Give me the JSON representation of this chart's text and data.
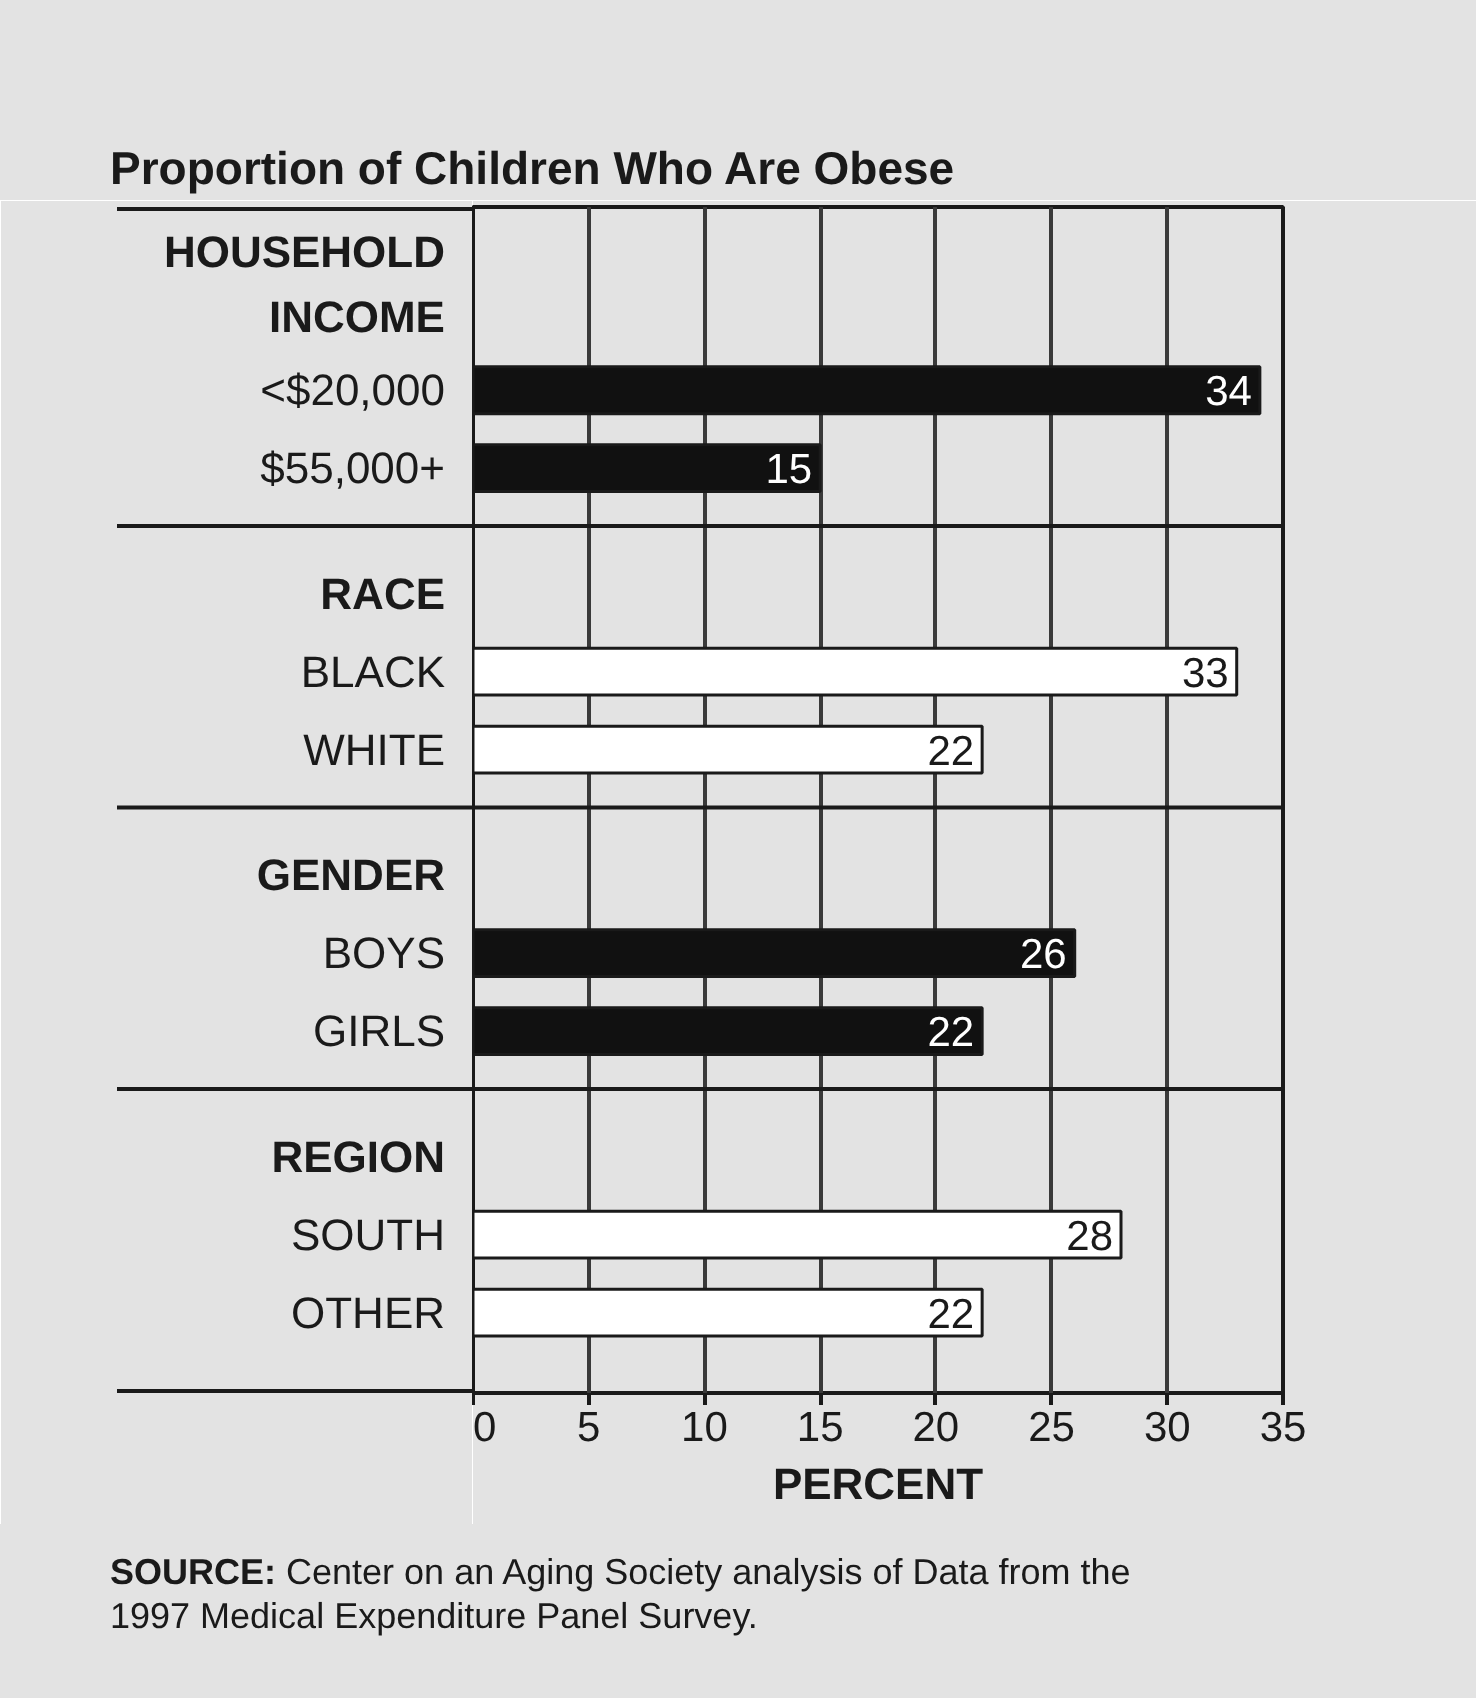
{
  "chart_data": {
    "type": "bar",
    "orientation": "horizontal",
    "title": "Proportion of Children Who Are Obese",
    "xlabel": "PERCENT",
    "categories": [
      "HOUSEHOLD INCOME",
      "<$20,000",
      "$55,000+",
      "RACE",
      "BLACK",
      "WHITE",
      "GENDER",
      "BOYS",
      "GIRLS",
      "REGION",
      "SOUTH",
      "OTHER"
    ],
    "values": [
      null,
      34,
      15,
      null,
      33,
      22,
      null,
      26,
      22,
      null,
      28,
      22
    ],
    "colors": [
      null,
      "#111111",
      "#111111",
      null,
      "#ffffff",
      "#ffffff",
      null,
      "#111111",
      "#111111",
      null,
      "#ffffff",
      "#ffffff"
    ],
    "data_labels": true,
    "xlim": [
      0,
      35
    ],
    "xticks": [
      0,
      5,
      10,
      15,
      20,
      25,
      30,
      35
    ],
    "grid": "x",
    "annotations": [
      "SOURCE: Center on an Aging Society analysis of Data from the 1997 Medical Expenditure Panel Survey."
    ]
  }
}
